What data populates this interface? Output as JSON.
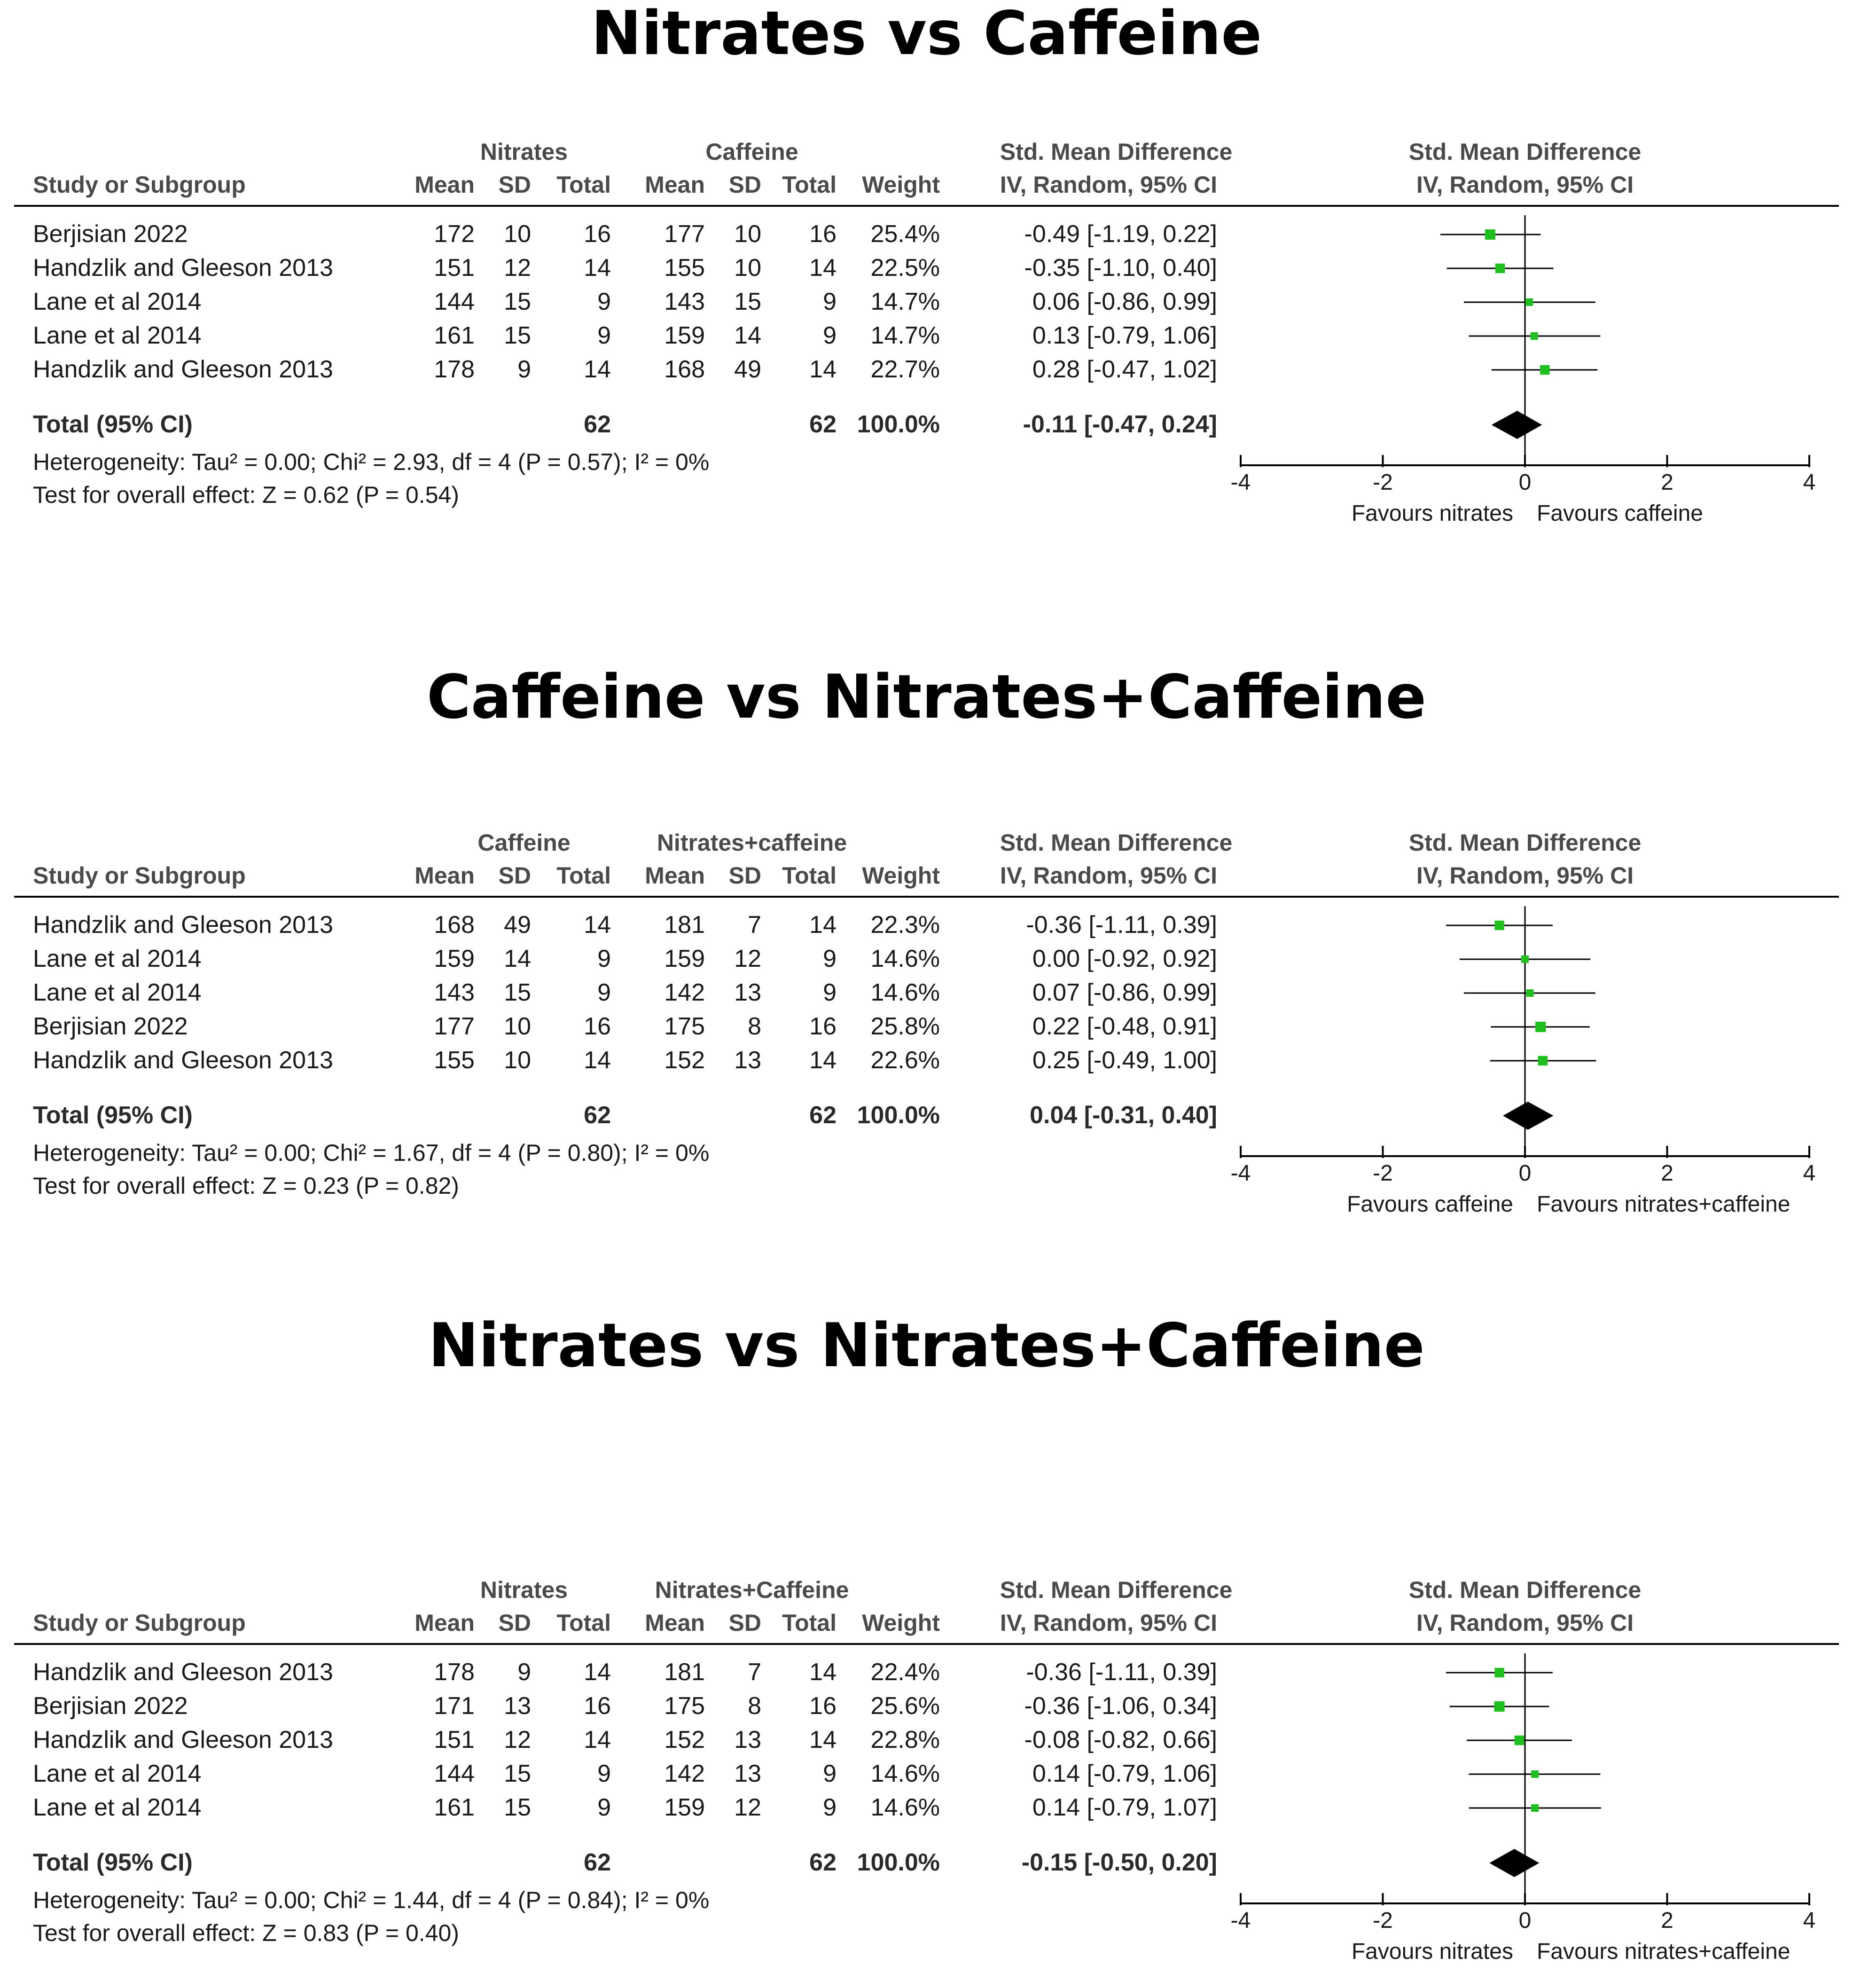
{
  "colors": {
    "marker": "#1fbf1f",
    "diamond": "#000000",
    "line": "#000000",
    "text": "#1a1a1a"
  },
  "chart_data": [
    {
      "type": "table",
      "title": "Nitrates vs Caffeine",
      "group1": "Nitrates",
      "group2": "Caffeine",
      "columns": {
        "study": "Study or Subgroup",
        "mean": "Mean",
        "sd": "SD",
        "total": "Total",
        "weight": "Weight",
        "smd_title": "Std. Mean Difference",
        "smd_sub": "IV, Random, 95% CI"
      },
      "rows": [
        {
          "study": "Berjisian 2022",
          "m1": "172",
          "sd1": "10",
          "n1": "16",
          "m2": "177",
          "sd2": "10",
          "n2": "16",
          "weight": "25.4%",
          "ci": "-0.49 [-1.19, 0.22]",
          "est": -0.49,
          "lo": -1.19,
          "hi": 0.22,
          "w": 25.4
        },
        {
          "study": "Handzlik and Gleeson 2013",
          "m1": "151",
          "sd1": "12",
          "n1": "14",
          "m2": "155",
          "sd2": "10",
          "n2": "14",
          "weight": "22.5%",
          "ci": "-0.35 [-1.10, 0.40]",
          "est": -0.35,
          "lo": -1.1,
          "hi": 0.4,
          "w": 22.5
        },
        {
          "study": "Lane et al 2014",
          "m1": "144",
          "sd1": "15",
          "n1": "9",
          "m2": "143",
          "sd2": "15",
          "n2": "9",
          "weight": "14.7%",
          "ci": "0.06 [-0.86, 0.99]",
          "est": 0.06,
          "lo": -0.86,
          "hi": 0.99,
          "w": 14.7
        },
        {
          "study": "Lane et al 2014",
          "m1": "161",
          "sd1": "15",
          "n1": "9",
          "m2": "159",
          "sd2": "14",
          "n2": "9",
          "weight": "14.7%",
          "ci": "0.13 [-0.79, 1.06]",
          "est": 0.13,
          "lo": -0.79,
          "hi": 1.06,
          "w": 14.7
        },
        {
          "study": "Handzlik and Gleeson 2013",
          "m1": "178",
          "sd1": "9",
          "n1": "14",
          "m2": "168",
          "sd2": "49",
          "n2": "14",
          "weight": "22.7%",
          "ci": "0.28 [-0.47, 1.02]",
          "est": 0.28,
          "lo": -0.47,
          "hi": 1.02,
          "w": 22.7
        }
      ],
      "total": {
        "label": "Total (95% CI)",
        "n1": "62",
        "n2": "62",
        "weight": "100.0%",
        "ci": "-0.11 [-0.47, 0.24]",
        "est": -0.11,
        "lo": -0.47,
        "hi": 0.24
      },
      "heterogeneity": "Heterogeneity: Tau² = 0.00; Chi² = 2.93, df = 4 (P = 0.57); I² = 0%",
      "overall": "Test for overall effect: Z = 0.62 (P = 0.54)",
      "xlim": [
        -4,
        4
      ],
      "ticks": [
        "-4",
        "-2",
        "0",
        "2",
        "4"
      ],
      "favours_left": "Favours nitrates",
      "favours_right": "Favours caffeine"
    },
    {
      "type": "table",
      "title": "Caffeine vs Nitrates+Caffeine",
      "group1": "Caffeine",
      "group2": "Nitrates+caffeine",
      "columns": {
        "study": "Study or Subgroup",
        "mean": "Mean",
        "sd": "SD",
        "total": "Total",
        "weight": "Weight",
        "smd_title": "Std. Mean Difference",
        "smd_sub": "IV, Random, 95% CI"
      },
      "rows": [
        {
          "study": "Handzlik and Gleeson 2013",
          "m1": "168",
          "sd1": "49",
          "n1": "14",
          "m2": "181",
          "sd2": "7",
          "n2": "14",
          "weight": "22.3%",
          "ci": "-0.36 [-1.11, 0.39]",
          "est": -0.36,
          "lo": -1.11,
          "hi": 0.39,
          "w": 22.3
        },
        {
          "study": "Lane et al 2014",
          "m1": "159",
          "sd1": "14",
          "n1": "9",
          "m2": "159",
          "sd2": "12",
          "n2": "9",
          "weight": "14.6%",
          "ci": "0.00 [-0.92, 0.92]",
          "est": 0.0,
          "lo": -0.92,
          "hi": 0.92,
          "w": 14.6
        },
        {
          "study": "Lane et al 2014",
          "m1": "143",
          "sd1": "15",
          "n1": "9",
          "m2": "142",
          "sd2": "13",
          "n2": "9",
          "weight": "14.6%",
          "ci": "0.07 [-0.86, 0.99]",
          "est": 0.07,
          "lo": -0.86,
          "hi": 0.99,
          "w": 14.6
        },
        {
          "study": "Berjisian 2022",
          "m1": "177",
          "sd1": "10",
          "n1": "16",
          "m2": "175",
          "sd2": "8",
          "n2": "16",
          "weight": "25.8%",
          "ci": "0.22 [-0.48, 0.91]",
          "est": 0.22,
          "lo": -0.48,
          "hi": 0.91,
          "w": 25.8
        },
        {
          "study": "Handzlik and Gleeson 2013",
          "m1": "155",
          "sd1": "10",
          "n1": "14",
          "m2": "152",
          "sd2": "13",
          "n2": "14",
          "weight": "22.6%",
          "ci": "0.25 [-0.49, 1.00]",
          "est": 0.25,
          "lo": -0.49,
          "hi": 1.0,
          "w": 22.6
        }
      ],
      "total": {
        "label": "Total (95% CI)",
        "n1": "62",
        "n2": "62",
        "weight": "100.0%",
        "ci": "0.04 [-0.31, 0.40]",
        "est": 0.04,
        "lo": -0.31,
        "hi": 0.4
      },
      "heterogeneity": "Heterogeneity: Tau² = 0.00; Chi² = 1.67, df = 4 (P = 0.80); I² = 0%",
      "overall": "Test for overall effect: Z = 0.23 (P = 0.82)",
      "xlim": [
        -4,
        4
      ],
      "ticks": [
        "-4",
        "-2",
        "0",
        "2",
        "4"
      ],
      "favours_left": "Favours caffeine",
      "favours_right": "Favours nitrates+caffeine"
    },
    {
      "type": "table",
      "title": "Nitrates vs Nitrates+Caffeine",
      "group1": "Nitrates",
      "group2": "Nitrates+Caffeine",
      "columns": {
        "study": "Study or Subgroup",
        "mean": "Mean",
        "sd": "SD",
        "total": "Total",
        "weight": "Weight",
        "smd_title": "Std. Mean Difference",
        "smd_sub": "IV, Random, 95% CI"
      },
      "rows": [
        {
          "study": "Handzlik and Gleeson 2013",
          "m1": "178",
          "sd1": "9",
          "n1": "14",
          "m2": "181",
          "sd2": "7",
          "n2": "14",
          "weight": "22.4%",
          "ci": "-0.36 [-1.11, 0.39]",
          "est": -0.36,
          "lo": -1.11,
          "hi": 0.39,
          "w": 22.4
        },
        {
          "study": "Berjisian 2022",
          "m1": "171",
          "sd1": "13",
          "n1": "16",
          "m2": "175",
          "sd2": "8",
          "n2": "16",
          "weight": "25.6%",
          "ci": "-0.36 [-1.06, 0.34]",
          "est": -0.36,
          "lo": -1.06,
          "hi": 0.34,
          "w": 25.6
        },
        {
          "study": "Handzlik and Gleeson 2013",
          "m1": "151",
          "sd1": "12",
          "n1": "14",
          "m2": "152",
          "sd2": "13",
          "n2": "14",
          "weight": "22.8%",
          "ci": "-0.08 [-0.82, 0.66]",
          "est": -0.08,
          "lo": -0.82,
          "hi": 0.66,
          "w": 22.8
        },
        {
          "study": "Lane et al 2014",
          "m1": "144",
          "sd1": "15",
          "n1": "9",
          "m2": "142",
          "sd2": "13",
          "n2": "9",
          "weight": "14.6%",
          "ci": "0.14 [-0.79, 1.06]",
          "est": 0.14,
          "lo": -0.79,
          "hi": 1.06,
          "w": 14.6
        },
        {
          "study": "Lane et al 2014",
          "m1": "161",
          "sd1": "15",
          "n1": "9",
          "m2": "159",
          "sd2": "12",
          "n2": "9",
          "weight": "14.6%",
          "ci": "0.14 [-0.79, 1.07]",
          "est": 0.14,
          "lo": -0.79,
          "hi": 1.07,
          "w": 14.6
        }
      ],
      "total": {
        "label": "Total (95% CI)",
        "n1": "62",
        "n2": "62",
        "weight": "100.0%",
        "ci": "-0.15 [-0.50, 0.20]",
        "est": -0.15,
        "lo": -0.5,
        "hi": 0.2
      },
      "heterogeneity": "Heterogeneity: Tau² = 0.00; Chi² = 1.44, df = 4 (P = 0.84); I² = 0%",
      "overall": "Test for overall effect: Z = 0.83 (P = 0.40)",
      "xlim": [
        -4,
        4
      ],
      "ticks": [
        "-4",
        "-2",
        "0",
        "2",
        "4"
      ],
      "favours_left": "Favours nitrates",
      "favours_right": "Favours nitrates+caffeine"
    }
  ]
}
